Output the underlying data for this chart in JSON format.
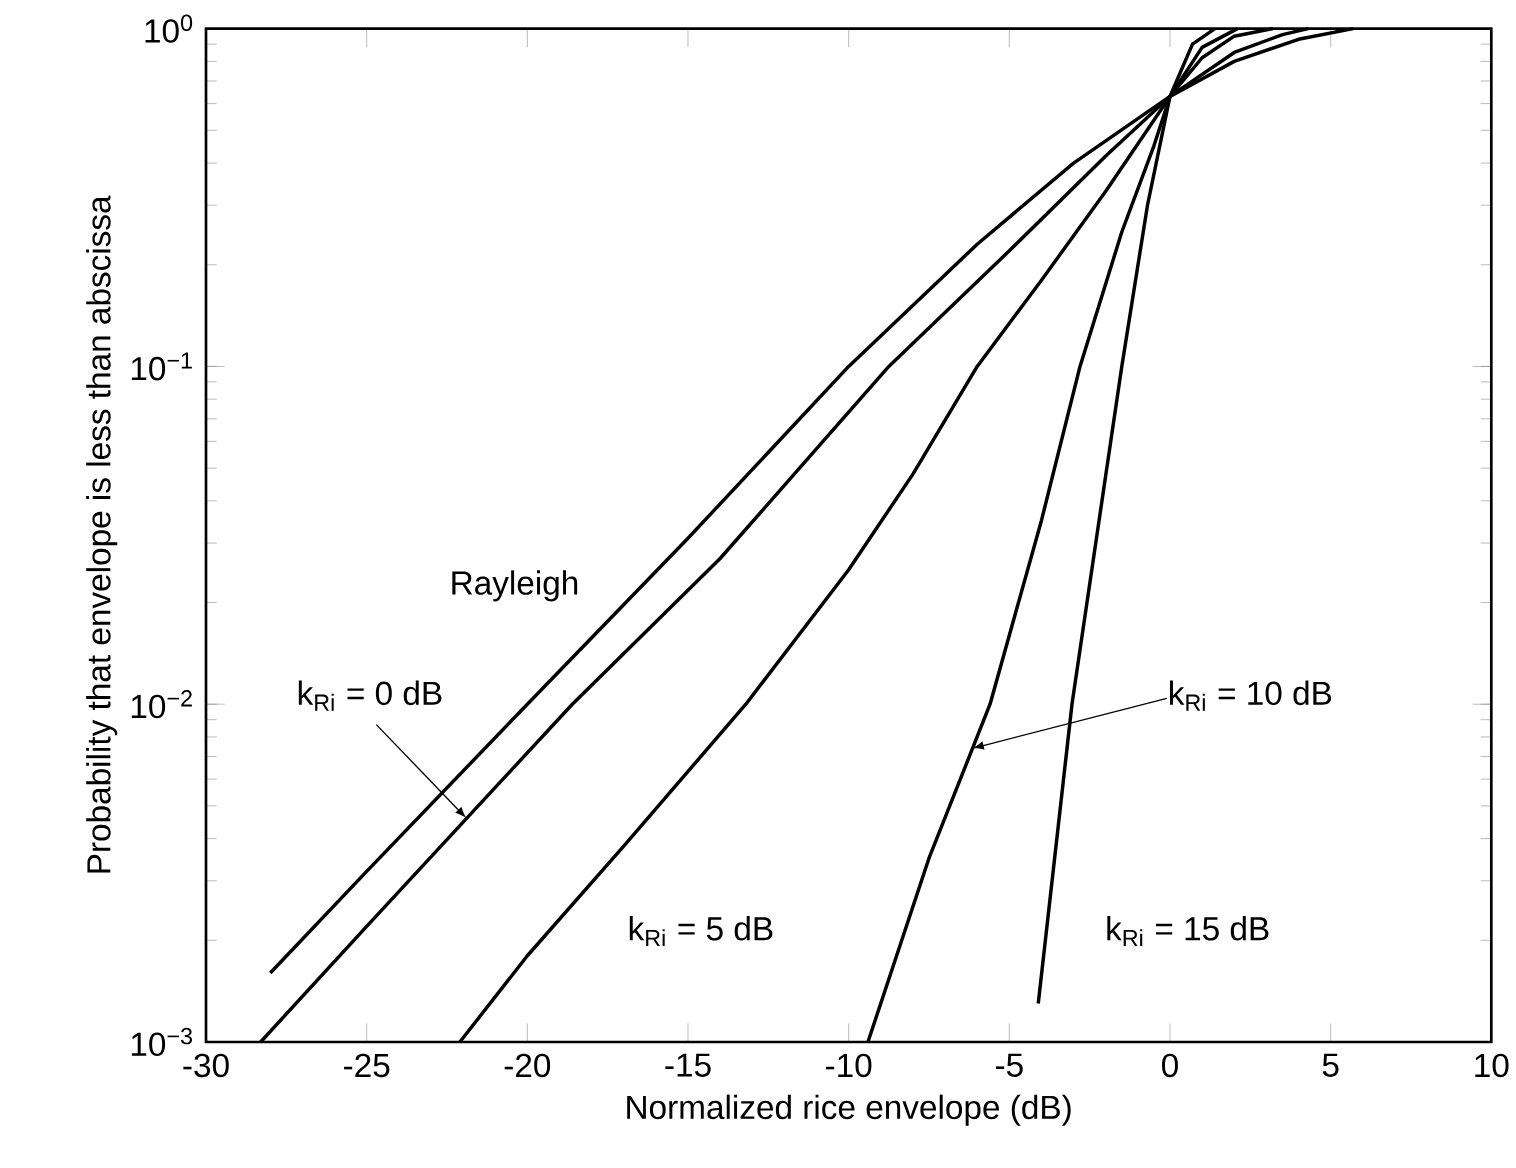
{
  "chart_data": {
    "type": "line",
    "xlabel": "Normalized rice envelope (dB)",
    "ylabel": "Probability that envelope is less than abscissa",
    "log": "y",
    "grid": false,
    "marker": "none",
    "line_style": "solid",
    "xlim": [
      -30,
      10
    ],
    "xticks": [
      -30,
      -25,
      -20,
      -15,
      -10,
      -5,
      0,
      5,
      10
    ],
    "ylim": [
      0.001,
      1
    ],
    "yticks": [
      {
        "value": 0.001,
        "label": "10$^{−3}$"
      },
      {
        "value": 0.01,
        "label": "10$^{−2}$"
      },
      {
        "value": 0.1,
        "label": "10$^{−1}$"
      },
      {
        "value": 1,
        "label": "10$^{0}$"
      }
    ],
    "annotations": [
      {
        "text": "k$_{Ri}$ = 0 dB",
        "x": -21.9,
        "y": 0.0046
      },
      {
        "text": "k$_{Ri}$ = 10 dB",
        "x": -6.15,
        "y": 0.0074
      }
    ],
    "series": [
      {
        "name": "Rayleigh",
        "color": "#000000",
        "x": [
          -28,
          -25,
          -20,
          -15,
          -10,
          -6,
          -3,
          0,
          2,
          4,
          5.7
        ],
        "values": [
          0.0016,
          0.0032,
          0.01,
          0.031,
          0.1,
          0.23,
          0.4,
          0.63,
          0.8,
          0.93,
          1
        ]
      },
      {
        "color": "#000000",
        "x": [
          -28.3,
          -25,
          -18.6,
          -14,
          -8.75,
          -5,
          -2,
          0,
          2,
          3.5,
          4.3
        ],
        "values": [
          0.001,
          0.0022,
          0.01,
          0.027,
          0.1,
          0.22,
          0.42,
          0.63,
          0.85,
          0.96,
          1
        ]
      },
      {
        "name": "k$_{Ri}$ = 5 dB",
        "color": "#000000",
        "x": [
          -22.1,
          -20,
          -17,
          -13.2,
          -10,
          -8,
          -6,
          -4,
          -2,
          0,
          1,
          2,
          3.2
        ],
        "values": [
          0.001,
          0.0018,
          0.0038,
          0.01,
          0.025,
          0.048,
          0.1,
          0.18,
          0.33,
          0.63,
          0.82,
          0.95,
          1
        ]
      },
      {
        "color": "#000000",
        "x": [
          -9.4,
          -7.5,
          -5.6,
          -4,
          -2.8,
          -1.5,
          -0.5,
          0,
          1,
          2.1
        ],
        "values": [
          0.001,
          0.0035,
          0.01,
          0.035,
          0.1,
          0.25,
          0.45,
          0.63,
          0.88,
          1
        ]
      },
      {
        "name": "k$_{Ri}$ = 15 dB",
        "color": "#000000",
        "x": [
          -4.1,
          -3.05,
          -1.5,
          -0.7,
          0,
          0.7,
          1.4
        ],
        "values": [
          0.0013,
          0.01,
          0.1,
          0.3,
          0.63,
          0.9,
          1
        ]
      }
    ]
  }
}
